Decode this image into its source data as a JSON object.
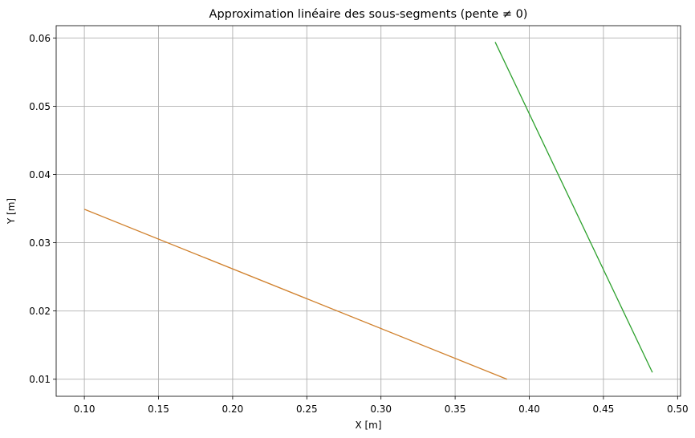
{
  "chart_data": {
    "type": "line",
    "title": "Approximation linéaire des sous-segments (pente ≠ 0)",
    "xlabel": "X [m]",
    "ylabel": "Y [m]",
    "xlim": [
      0.081,
      0.502
    ],
    "ylim": [
      0.0075,
      0.0618
    ],
    "xticks": [
      0.1,
      0.15,
      0.2,
      0.25,
      0.3,
      0.35,
      0.4,
      0.45,
      0.5
    ],
    "xtick_labels": [
      "0.10",
      "0.15",
      "0.20",
      "0.25",
      "0.30",
      "0.35",
      "0.40",
      "0.45",
      "0.50"
    ],
    "yticks": [
      0.01,
      0.02,
      0.03,
      0.04,
      0.05,
      0.06
    ],
    "ytick_labels": [
      "0.01",
      "0.02",
      "0.03",
      "0.04",
      "0.05",
      "0.06"
    ],
    "grid": true,
    "series": [
      {
        "x": [
          0.1,
          0.385
        ],
        "y": [
          0.0349,
          0.01
        ],
        "color": "#d0802c"
      },
      {
        "x": [
          0.377,
          0.483
        ],
        "y": [
          0.0594,
          0.011
        ],
        "color": "#2ca02c"
      }
    ]
  }
}
